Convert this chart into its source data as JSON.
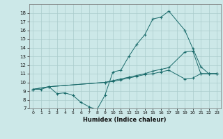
{
  "xlabel": "Humidex (Indice chaleur)",
  "background_color": "#cce8e8",
  "grid_color": "#aacccc",
  "line_color": "#1a6b6b",
  "xlim": [
    -0.5,
    23.5
  ],
  "ylim": [
    7,
    19
  ],
  "xticks": [
    0,
    1,
    2,
    3,
    4,
    5,
    6,
    7,
    8,
    9,
    10,
    11,
    12,
    13,
    14,
    15,
    16,
    17,
    18,
    19,
    20,
    21,
    22,
    23
  ],
  "yticks": [
    7,
    8,
    9,
    10,
    11,
    12,
    13,
    14,
    15,
    16,
    17,
    18
  ],
  "line1_x": [
    0,
    1,
    2,
    3,
    4,
    5,
    6,
    7,
    8,
    9,
    10,
    11,
    12,
    13,
    14,
    15,
    16,
    17,
    19,
    20,
    21,
    22,
    23
  ],
  "line1_y": [
    9.2,
    9.2,
    9.5,
    8.7,
    8.8,
    8.5,
    7.7,
    7.2,
    6.85,
    8.5,
    11.2,
    11.4,
    13.0,
    14.4,
    15.5,
    17.3,
    17.5,
    18.2,
    16.0,
    13.9,
    11.8,
    11.0,
    11.0
  ],
  "line2_x": [
    0,
    2,
    9,
    10,
    11,
    12,
    13,
    14,
    15,
    16,
    17,
    19,
    20,
    21,
    22,
    23
  ],
  "line2_y": [
    9.2,
    9.5,
    10.0,
    10.2,
    10.4,
    10.6,
    10.8,
    11.0,
    11.3,
    11.5,
    11.7,
    13.5,
    13.6,
    11.0,
    11.0,
    11.0
  ],
  "line3_x": [
    0,
    2,
    9,
    10,
    11,
    12,
    13,
    14,
    15,
    16,
    17,
    19,
    20,
    21,
    22,
    23
  ],
  "line3_y": [
    9.2,
    9.5,
    10.0,
    10.1,
    10.3,
    10.5,
    10.7,
    10.9,
    11.0,
    11.2,
    11.4,
    10.4,
    10.5,
    11.0,
    11.0,
    11.0
  ]
}
